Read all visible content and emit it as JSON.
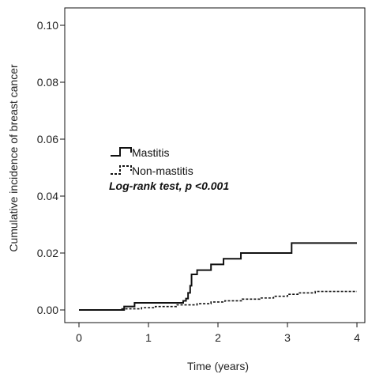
{
  "chart_data": {
    "type": "line",
    "title": "",
    "xlabel": "Time (years)",
    "ylabel": "Cumulative incidence of breast cancer",
    "xlim": [
      0,
      4
    ],
    "ylim": [
      0,
      0.1
    ],
    "x_ticks": [
      {
        "value": 0,
        "label": "0"
      },
      {
        "value": 1,
        "label": "1"
      },
      {
        "value": 2,
        "label": "2"
      },
      {
        "value": 3,
        "label": "3"
      },
      {
        "value": 4,
        "label": "4"
      }
    ],
    "y_ticks": [
      {
        "value": 0,
        "label": "0.00"
      },
      {
        "value": 0.02,
        "label": "0.02"
      },
      {
        "value": 0.04,
        "label": "0.04"
      },
      {
        "value": 0.06,
        "label": "0.06"
      },
      {
        "value": 0.08,
        "label": "0.08"
      },
      {
        "value": 0.1,
        "label": "0.10"
      }
    ],
    "grid": false,
    "legend_position": "center-left",
    "annotation": "Log-rank test, p <0.001",
    "series": [
      {
        "name": "Mastitis",
        "style": "solid",
        "color": "#111111",
        "step_points": [
          [
            0,
            0
          ],
          [
            0.65,
            0.0012
          ],
          [
            0.8,
            0.0025
          ],
          [
            1.35,
            0.0025
          ],
          [
            1.5,
            0.0032
          ],
          [
            1.54,
            0.004
          ],
          [
            1.57,
            0.006
          ],
          [
            1.6,
            0.0085
          ],
          [
            1.62,
            0.0125
          ],
          [
            1.7,
            0.014
          ],
          [
            1.9,
            0.016
          ],
          [
            2.08,
            0.018
          ],
          [
            2.33,
            0.02
          ],
          [
            3.06,
            0.0235
          ],
          [
            4,
            0.0235
          ]
        ]
      },
      {
        "name": "Non-mastitis",
        "style": "dashed",
        "color": "#111111",
        "step_points": [
          [
            0,
            0
          ],
          [
            0.6,
            0.0004
          ],
          [
            0.9,
            0.0008
          ],
          [
            1.1,
            0.0012
          ],
          [
            1.4,
            0.0018
          ],
          [
            1.7,
            0.0022
          ],
          [
            1.9,
            0.0028
          ],
          [
            2.1,
            0.0032
          ],
          [
            2.35,
            0.0038
          ],
          [
            2.6,
            0.0042
          ],
          [
            2.8,
            0.0048
          ],
          [
            3.0,
            0.0055
          ],
          [
            3.15,
            0.006
          ],
          [
            3.4,
            0.0065
          ],
          [
            4,
            0.0065
          ]
        ]
      }
    ]
  }
}
